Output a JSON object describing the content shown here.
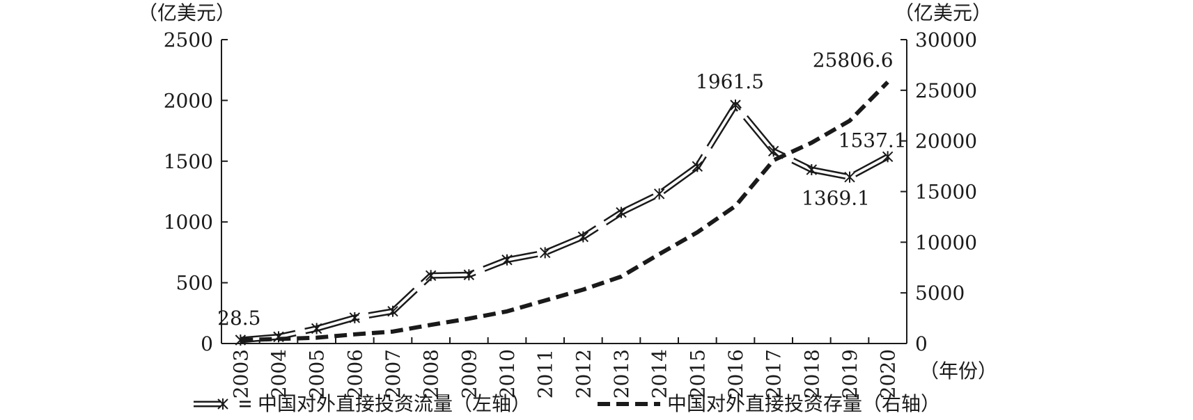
{
  "chart_data": {
    "type": "line",
    "categories": [
      "2003",
      "2004",
      "2005",
      "2006",
      "2007",
      "2008",
      "2009",
      "2010",
      "2011",
      "2012",
      "2013",
      "2014",
      "2015",
      "2016",
      "2017",
      "2018",
      "2019",
      "2020"
    ],
    "series": [
      {
        "name": "中国对外直接投资流量（左轴）",
        "axis": "left",
        "style": "double-line-with-x-markers",
        "values": [
          28.5,
          55,
          123,
          212,
          265,
          559,
          565,
          688,
          747,
          878,
          1078,
          1231,
          1457,
          1961.5,
          1583,
          1430,
          1369.1,
          1537.1
        ]
      },
      {
        "name": "中国对外直接投资存量（右轴）",
        "axis": "right",
        "style": "thick-dashed",
        "values": [
          332,
          448,
          572,
          906,
          1179,
          1840,
          2458,
          3172,
          4248,
          5319,
          6605,
          8826,
          10979,
          13574,
          18090,
          19823,
          21989,
          25806.6
        ]
      }
    ],
    "left_axis": {
      "unit": "（亿美元）",
      "ylim": [
        0,
        2500
      ],
      "ticks": [
        "0",
        "500",
        "1000",
        "1500",
        "2000",
        "2500"
      ]
    },
    "right_axis": {
      "unit": "（亿美元）",
      "ylim": [
        0,
        30000
      ],
      "ticks": [
        "0",
        "5000",
        "10000",
        "15000",
        "20000",
        "25000",
        "30000"
      ]
    },
    "x_axis": {
      "unit": "（年份）"
    },
    "annotations": [
      {
        "text": "28.5",
        "series": 0,
        "index": 0
      },
      {
        "text": "1961.5",
        "series": 0,
        "index": 13
      },
      {
        "text": "1369.1",
        "series": 0,
        "index": 16
      },
      {
        "text": "1537.1",
        "series": 0,
        "index": 17
      },
      {
        "text": "25806.6",
        "series": 1,
        "index": 17
      }
    ],
    "legend": {
      "position": "bottom",
      "items": [
        "中国对外直接投资流量（左轴）",
        "中国对外直接投资存量（右轴）"
      ]
    },
    "grid": false
  }
}
